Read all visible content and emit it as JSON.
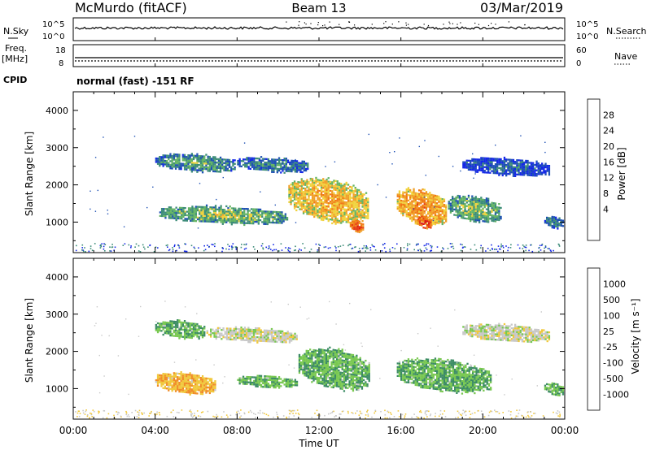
{
  "header": {
    "title": "McMurdo (fitACF)",
    "beam": "Beam 13",
    "date": "03/Mar/2019"
  },
  "noise_panel": {
    "left_label": "N.Sky",
    "right_label": "N.Search",
    "left_ticks": [
      "10^5",
      "10^0"
    ],
    "right_ticks": [
      "10^5",
      "10^0"
    ]
  },
  "freq_panel": {
    "left_label_1": "Freq.",
    "left_label_2": "[MHz]",
    "right_label": "Nave",
    "left_ticks": [
      "18",
      "8"
    ],
    "right_ticks": [
      "60",
      "0"
    ]
  },
  "cpid": {
    "label": "CPID",
    "text": "normal (fast) -151 RF"
  },
  "power_panel": {
    "ylabel": "Slant Range [km]",
    "yticks": [
      "4000",
      "3000",
      "2000",
      "1000"
    ],
    "colorbar_label": "Power [dB]",
    "colorbar_ticks": [
      "28",
      "24",
      "20",
      "16",
      "12",
      "8",
      "4"
    ],
    "colors": [
      "#1428e6",
      "#1e50b4",
      "#3c8c78",
      "#64b464",
      "#f0d23c",
      "#f0a028",
      "#f07814",
      "#e63c14",
      "#dc1414"
    ]
  },
  "velocity_panel": {
    "ylabel": "Slant Range [km]",
    "yticks": [
      "4000",
      "3000",
      "2000",
      "1000"
    ],
    "colorbar_label": "Velocity [m s⁻¹]",
    "colorbar_ticks": [
      "1000",
      "500",
      "100",
      "25",
      "-25",
      "-100",
      "-500",
      "-1000"
    ],
    "colors": [
      "#1e32c8",
      "#2850a0",
      "#3c8c64",
      "#78c850",
      "#c8c8c8",
      "#f0c83c",
      "#f08c28",
      "#e66414",
      "#dc1414"
    ]
  },
  "x_axis": {
    "label": "Time UT",
    "ticks": [
      "00:00",
      "04:00",
      "08:00",
      "12:00",
      "16:00",
      "20:00",
      "00:00"
    ]
  },
  "chart_data": [
    {
      "type": "line",
      "panel": "noise",
      "y_scale": "log",
      "xlim": [
        0,
        24
      ],
      "ylim": [
        1,
        100000
      ]
    },
    {
      "type": "line",
      "panel": "frequency",
      "xlim": [
        0,
        24
      ],
      "ylim": [
        8,
        18
      ],
      "series": [
        {
          "values_hint": "approximately constant near 10 MHz"
        }
      ]
    },
    {
      "type": "heatmap",
      "panel": "power",
      "xlim": [
        0,
        24
      ],
      "ylim": [
        180,
        4500
      ],
      "zrange": [
        0,
        30
      ],
      "regions": [
        {
          "t0": 4.0,
          "t1": 8.0,
          "r0": 2300,
          "r1": 2900,
          "level": 12
        },
        {
          "t0": 8.0,
          "t1": 11.5,
          "r0": 2300,
          "r1": 2800,
          "level": 10
        },
        {
          "t0": 4.2,
          "t1": 10.5,
          "r0": 900,
          "r1": 1500,
          "level": 14
        },
        {
          "t0": 10.5,
          "t1": 14.5,
          "r0": 900,
          "r1": 2300,
          "level": 20
        },
        {
          "t0": 13.5,
          "t1": 14.2,
          "r0": 700,
          "r1": 1100,
          "level": 26
        },
        {
          "t0": 15.8,
          "t1": 18.3,
          "r0": 800,
          "r1": 2000,
          "level": 22
        },
        {
          "t0": 16.8,
          "t1": 17.5,
          "r0": 800,
          "r1": 1200,
          "level": 28
        },
        {
          "t0": 18.3,
          "t1": 21.0,
          "r0": 900,
          "r1": 1800,
          "level": 14
        },
        {
          "t0": 19.0,
          "t1": 23.3,
          "r0": 2200,
          "r1": 2800,
          "level": 8
        },
        {
          "t0": 23.0,
          "t1": 24.0,
          "r0": 800,
          "r1": 1200,
          "level": 10
        }
      ]
    },
    {
      "type": "heatmap",
      "panel": "velocity",
      "xlim": [
        0,
        24
      ],
      "ylim": [
        180,
        4500
      ],
      "zrange": [
        -1000,
        1000
      ],
      "regions": [
        {
          "t0": 4.0,
          "t1": 6.5,
          "r0": 2300,
          "r1": 2900,
          "level": -300
        },
        {
          "t0": 6.5,
          "t1": 11.0,
          "r0": 2200,
          "r1": 2700,
          "level": 0
        },
        {
          "t0": 4.0,
          "t1": 7.0,
          "r0": 800,
          "r1": 1500,
          "level": 300
        },
        {
          "t0": 8.0,
          "t1": 11.0,
          "r0": 1000,
          "r1": 1400,
          "level": -300
        },
        {
          "t0": 11.0,
          "t1": 14.5,
          "r0": 900,
          "r1": 2200,
          "level": -300
        },
        {
          "t0": 15.8,
          "t1": 20.5,
          "r0": 800,
          "r1": 1900,
          "level": -300
        },
        {
          "t0": 19.0,
          "t1": 23.3,
          "r0": 2200,
          "r1": 2800,
          "level": 0
        },
        {
          "t0": 23.0,
          "t1": 24.0,
          "r0": 800,
          "r1": 1200,
          "level": -300
        }
      ]
    }
  ]
}
